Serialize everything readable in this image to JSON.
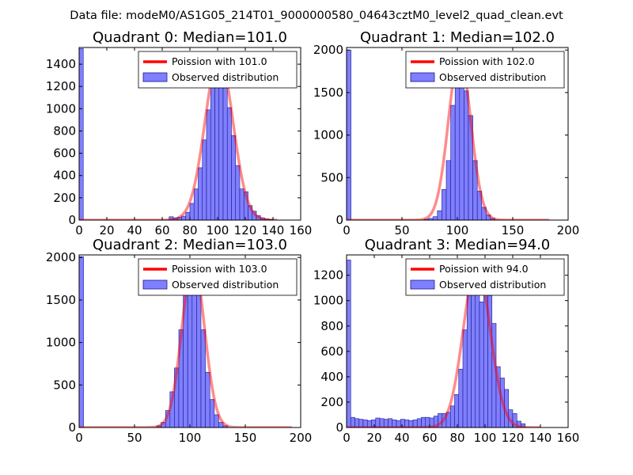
{
  "figure_title": "Data file: modeM0/AS1G05_214T01_9000000580_04643cztM0_level2_quad_clean.evt",
  "colors": {
    "bar_fill": "#7f7fff",
    "bar_edge": "#1a1a8c",
    "line": "#ff0000",
    "frame": "#000000",
    "legend_edge": "#000000"
  },
  "chart_data": [
    {
      "type": "bar",
      "title": "Quadrant 0: Median=101.0",
      "xlim": [
        0,
        160
      ],
      "ylim": [
        0,
        1550
      ],
      "xticks": [
        "0",
        "20",
        "40",
        "60",
        "80",
        "100",
        "120",
        "140",
        "160"
      ],
      "xtick_values": [
        0,
        20,
        40,
        60,
        80,
        100,
        120,
        140,
        160
      ],
      "yticks": [
        "0",
        "200",
        "400",
        "600",
        "800",
        "1000",
        "1200",
        "1400"
      ],
      "ytick_values": [
        0,
        200,
        400,
        600,
        800,
        1000,
        1200,
        1400
      ],
      "bin_width": 3,
      "bins": [
        {
          "x": 0,
          "y": 1540
        },
        {
          "x": 65,
          "y": 30
        },
        {
          "x": 68,
          "y": 20
        },
        {
          "x": 71,
          "y": 25
        },
        {
          "x": 74,
          "y": 35
        },
        {
          "x": 77,
          "y": 70
        },
        {
          "x": 80,
          "y": 150
        },
        {
          "x": 83,
          "y": 280
        },
        {
          "x": 86,
          "y": 470
        },
        {
          "x": 89,
          "y": 720
        },
        {
          "x": 92,
          "y": 990
        },
        {
          "x": 95,
          "y": 1190
        },
        {
          "x": 98,
          "y": 1390
        },
        {
          "x": 101,
          "y": 1470
        },
        {
          "x": 104,
          "y": 1210
        },
        {
          "x": 107,
          "y": 1010
        },
        {
          "x": 110,
          "y": 760
        },
        {
          "x": 113,
          "y": 490
        },
        {
          "x": 116,
          "y": 280
        },
        {
          "x": 119,
          "y": 255
        },
        {
          "x": 122,
          "y": 130
        },
        {
          "x": 125,
          "y": 80
        },
        {
          "x": 128,
          "y": 40
        },
        {
          "x": 131,
          "y": 20
        },
        {
          "x": 134,
          "y": 10
        },
        {
          "x": 137,
          "y": 5
        }
      ],
      "poisson_mean": 101.0,
      "curve_x_end": 143,
      "curve_peak": 1470,
      "legend": {
        "line_label": "Poission with 101.0",
        "bar_label": "Observed distribution",
        "loc": "upper right"
      }
    },
    {
      "type": "bar",
      "title": "Quadrant 1: Median=102.0",
      "xlim": [
        0,
        200
      ],
      "ylim": [
        0,
        2030
      ],
      "xticks": [
        "0",
        "50",
        "100",
        "150",
        "200"
      ],
      "xtick_values": [
        0,
        50,
        100,
        150,
        200
      ],
      "yticks": [
        "0",
        "500",
        "1000",
        "1500",
        "2000"
      ],
      "ytick_values": [
        0,
        500,
        1000,
        1500,
        2000
      ],
      "bin_width": 4,
      "bins": [
        {
          "x": 0,
          "y": 2000
        },
        {
          "x": 70,
          "y": 10
        },
        {
          "x": 74,
          "y": 20
        },
        {
          "x": 78,
          "y": 40
        },
        {
          "x": 82,
          "y": 110
        },
        {
          "x": 86,
          "y": 360
        },
        {
          "x": 90,
          "y": 700
        },
        {
          "x": 94,
          "y": 1350
        },
        {
          "x": 98,
          "y": 1780
        },
        {
          "x": 102,
          "y": 1930
        },
        {
          "x": 106,
          "y": 1520
        },
        {
          "x": 110,
          "y": 1230
        },
        {
          "x": 114,
          "y": 700
        },
        {
          "x": 118,
          "y": 340
        },
        {
          "x": 122,
          "y": 150
        },
        {
          "x": 126,
          "y": 60
        },
        {
          "x": 130,
          "y": 20
        }
      ],
      "poisson_mean": 102.0,
      "curve_x_end": 183,
      "curve_peak": 1930,
      "legend": {
        "line_label": "Poission with 102.0",
        "bar_label": "Observed distribution",
        "loc": "upper right"
      }
    },
    {
      "type": "bar",
      "title": "Quadrant 2: Median=103.0",
      "xlim": [
        0,
        200
      ],
      "ylim": [
        0,
        2030
      ],
      "xticks": [
        "0",
        "50",
        "100",
        "150",
        "200"
      ],
      "xtick_values": [
        0,
        50,
        100,
        150,
        200
      ],
      "yticks": [
        "0",
        "500",
        "1000",
        "1500",
        "2000"
      ],
      "ytick_values": [
        0,
        500,
        1000,
        1500,
        2000
      ],
      "bin_width": 4,
      "bins": [
        {
          "x": 0,
          "y": 2010
        },
        {
          "x": 70,
          "y": 20
        },
        {
          "x": 74,
          "y": 60
        },
        {
          "x": 78,
          "y": 200
        },
        {
          "x": 82,
          "y": 420
        },
        {
          "x": 86,
          "y": 700
        },
        {
          "x": 90,
          "y": 1150
        },
        {
          "x": 94,
          "y": 1560
        },
        {
          "x": 98,
          "y": 1900
        },
        {
          "x": 102,
          "y": 1950
        },
        {
          "x": 106,
          "y": 1650
        },
        {
          "x": 110,
          "y": 1150
        },
        {
          "x": 114,
          "y": 650
        },
        {
          "x": 118,
          "y": 330
        },
        {
          "x": 122,
          "y": 150
        },
        {
          "x": 126,
          "y": 60
        },
        {
          "x": 130,
          "y": 20
        }
      ],
      "poisson_mean": 103.0,
      "curve_x_end": 192,
      "curve_peak": 1950,
      "legend": {
        "line_label": "Poission with 103.0",
        "bar_label": "Observed distribution",
        "loc": "upper right"
      }
    },
    {
      "type": "bar",
      "title": "Quadrant 3: Median=94.0",
      "xlim": [
        0,
        160
      ],
      "ylim": [
        0,
        1360
      ],
      "xticks": [
        "0",
        "20",
        "40",
        "60",
        "80",
        "100",
        "120",
        "140",
        "160"
      ],
      "xtick_values": [
        0,
        20,
        40,
        60,
        80,
        100,
        120,
        140,
        160
      ],
      "yticks": [
        "0",
        "200",
        "400",
        "600",
        "800",
        "1000",
        "1200"
      ],
      "ytick_values": [
        0,
        200,
        400,
        600,
        800,
        1000,
        1200
      ],
      "bin_width": 3,
      "bins": [
        {
          "x": 0,
          "y": 1320
        },
        {
          "x": 3,
          "y": 80
        },
        {
          "x": 6,
          "y": 70
        },
        {
          "x": 9,
          "y": 65
        },
        {
          "x": 12,
          "y": 60
        },
        {
          "x": 15,
          "y": 55
        },
        {
          "x": 18,
          "y": 60
        },
        {
          "x": 21,
          "y": 75
        },
        {
          "x": 24,
          "y": 70
        },
        {
          "x": 27,
          "y": 65
        },
        {
          "x": 30,
          "y": 70
        },
        {
          "x": 33,
          "y": 60
        },
        {
          "x": 36,
          "y": 55
        },
        {
          "x": 39,
          "y": 65
        },
        {
          "x": 42,
          "y": 60
        },
        {
          "x": 45,
          "y": 55
        },
        {
          "x": 48,
          "y": 60
        },
        {
          "x": 51,
          "y": 70
        },
        {
          "x": 54,
          "y": 80
        },
        {
          "x": 57,
          "y": 80
        },
        {
          "x": 60,
          "y": 75
        },
        {
          "x": 63,
          "y": 90
        },
        {
          "x": 66,
          "y": 110
        },
        {
          "x": 69,
          "y": 110
        },
        {
          "x": 72,
          "y": 120
        },
        {
          "x": 75,
          "y": 170
        },
        {
          "x": 78,
          "y": 260
        },
        {
          "x": 81,
          "y": 460
        },
        {
          "x": 84,
          "y": 770
        },
        {
          "x": 87,
          "y": 1080
        },
        {
          "x": 90,
          "y": 1180
        },
        {
          "x": 93,
          "y": 1230
        },
        {
          "x": 96,
          "y": 990
        },
        {
          "x": 99,
          "y": 1170
        },
        {
          "x": 102,
          "y": 1040
        },
        {
          "x": 105,
          "y": 820
        },
        {
          "x": 108,
          "y": 480
        },
        {
          "x": 111,
          "y": 390
        },
        {
          "x": 114,
          "y": 300
        },
        {
          "x": 117,
          "y": 140
        },
        {
          "x": 120,
          "y": 110
        },
        {
          "x": 123,
          "y": 50
        },
        {
          "x": 126,
          "y": 30
        }
      ],
      "poisson_mean": 94.0,
      "curve_x_end": 140,
      "curve_peak": 1280,
      "legend": {
        "line_label": "Poission with 94.0",
        "bar_label": "Observed distribution",
        "loc": "upper right"
      }
    }
  ]
}
